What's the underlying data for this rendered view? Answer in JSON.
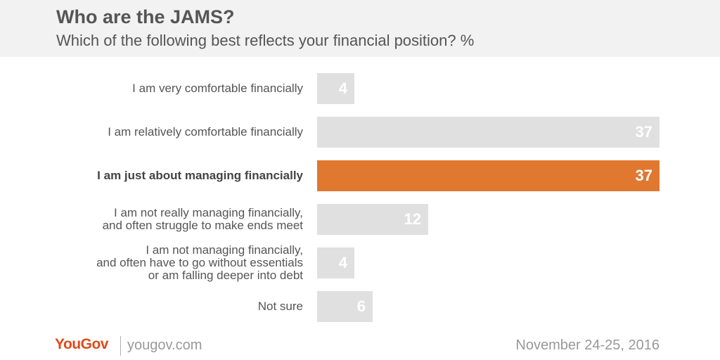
{
  "header": {
    "title": "Who are the JAMS?",
    "subtitle": "Which of the following best reflects your financial position? %"
  },
  "chart_data": {
    "type": "bar",
    "orientation": "horizontal",
    "title": "Who are the JAMS?",
    "subtitle": "Which of the following best reflects your financial position? %",
    "categories": [
      "I am very comfortable financially",
      "I am relatively comfortable financially",
      "I am just about managing financially",
      "I am not really managing financially,\nand often struggle to make ends meet",
      "I am not managing financially,\nand often have to go without essentials\nor am falling deeper into debt",
      "Not sure"
    ],
    "values": [
      4,
      37,
      37,
      12,
      4,
      6
    ],
    "highlight_index": 2,
    "xlim": [
      0,
      37
    ],
    "grid": false,
    "colors": {
      "bar": "#e0e0e0",
      "highlight": "#e07830",
      "value_text": "#ffffff"
    }
  },
  "footer": {
    "logo": "YouGov",
    "url": "yougov.com",
    "date": "November 24-25, 2016"
  }
}
